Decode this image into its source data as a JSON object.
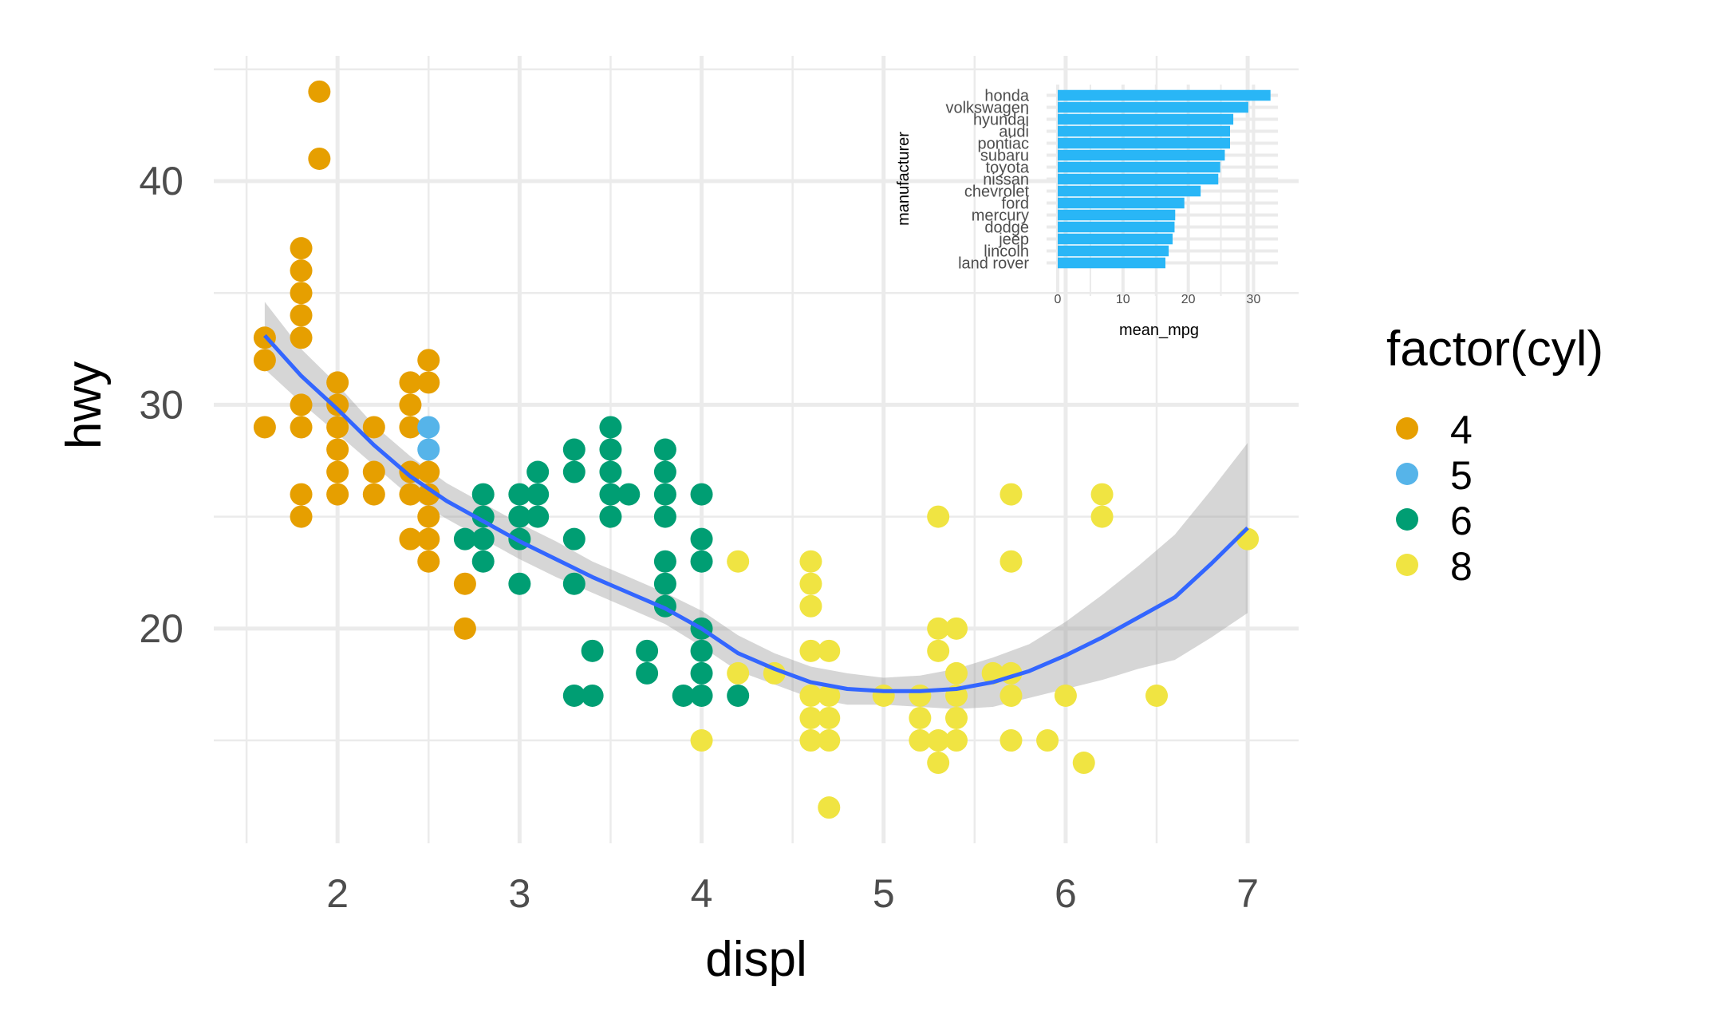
{
  "chart_data": [
    {
      "type": "scatter",
      "xlabel": "displ",
      "ylabel": "hwy",
      "xlim": [
        1.32,
        7.28
      ],
      "ylim": [
        10.4,
        45.6
      ],
      "xticks": [
        2,
        3,
        4,
        5,
        6,
        7
      ],
      "yticks": [
        20,
        30,
        40
      ],
      "grid": true,
      "legend": {
        "title": "factor(cyl)",
        "placement": "right",
        "entries": [
          {
            "label": "4",
            "color": "#E69F00"
          },
          {
            "label": "5",
            "color": "#56B4E9"
          },
          {
            "label": "6",
            "color": "#009E73"
          },
          {
            "label": "8",
            "color": "#F0E442"
          }
        ]
      },
      "series": [
        {
          "name": "4",
          "color": "#E69F00",
          "points": [
            [
              1.6,
              33
            ],
            [
              1.6,
              32
            ],
            [
              1.6,
              29
            ],
            [
              1.8,
              37
            ],
            [
              1.8,
              36
            ],
            [
              1.8,
              35
            ],
            [
              1.8,
              34
            ],
            [
              1.8,
              33
            ],
            [
              1.8,
              30
            ],
            [
              1.8,
              29
            ],
            [
              1.8,
              26
            ],
            [
              1.8,
              25
            ],
            [
              1.9,
              44
            ],
            [
              1.9,
              41
            ],
            [
              2.0,
              31
            ],
            [
              2.0,
              30
            ],
            [
              2.0,
              29
            ],
            [
              2.0,
              28
            ],
            [
              2.0,
              27
            ],
            [
              2.0,
              26
            ],
            [
              2.2,
              29
            ],
            [
              2.2,
              27
            ],
            [
              2.2,
              26
            ],
            [
              2.4,
              31
            ],
            [
              2.4,
              30
            ],
            [
              2.4,
              29
            ],
            [
              2.4,
              27
            ],
            [
              2.4,
              26
            ],
            [
              2.4,
              24
            ],
            [
              2.5,
              32
            ],
            [
              2.5,
              31
            ],
            [
              2.5,
              27
            ],
            [
              2.5,
              26
            ],
            [
              2.5,
              25
            ],
            [
              2.5,
              24
            ],
            [
              2.5,
              23
            ],
            [
              2.7,
              22
            ],
            [
              2.7,
              20
            ]
          ]
        },
        {
          "name": "5",
          "color": "#56B4E9",
          "points": [
            [
              2.5,
              29
            ],
            [
              2.5,
              28
            ]
          ]
        },
        {
          "name": "6",
          "color": "#009E73",
          "points": [
            [
              2.7,
              24
            ],
            [
              2.8,
              26
            ],
            [
              2.8,
              25
            ],
            [
              2.8,
              24
            ],
            [
              2.8,
              23
            ],
            [
              3.0,
              26
            ],
            [
              3.0,
              25
            ],
            [
              3.0,
              24
            ],
            [
              3.0,
              22
            ],
            [
              3.1,
              27
            ],
            [
              3.1,
              26
            ],
            [
              3.1,
              25
            ],
            [
              3.3,
              28
            ],
            [
              3.3,
              27
            ],
            [
              3.3,
              24
            ],
            [
              3.3,
              22
            ],
            [
              3.3,
              17
            ],
            [
              3.4,
              19
            ],
            [
              3.4,
              17
            ],
            [
              3.5,
              29
            ],
            [
              3.5,
              28
            ],
            [
              3.5,
              27
            ],
            [
              3.5,
              26
            ],
            [
              3.5,
              25
            ],
            [
              3.6,
              26
            ],
            [
              3.7,
              19
            ],
            [
              3.7,
              18
            ],
            [
              3.8,
              28
            ],
            [
              3.8,
              27
            ],
            [
              3.8,
              26
            ],
            [
              3.8,
              25
            ],
            [
              3.8,
              23
            ],
            [
              3.8,
              22
            ],
            [
              3.8,
              21
            ],
            [
              3.9,
              17
            ],
            [
              4.0,
              26
            ],
            [
              4.0,
              24
            ],
            [
              4.0,
              23
            ],
            [
              4.0,
              20
            ],
            [
              4.0,
              19
            ],
            [
              4.0,
              18
            ],
            [
              4.0,
              17
            ],
            [
              4.2,
              17
            ]
          ]
        },
        {
          "name": "8",
          "color": "#F0E442",
          "points": [
            [
              4.0,
              15
            ],
            [
              4.2,
              23
            ],
            [
              4.2,
              18
            ],
            [
              4.4,
              18
            ],
            [
              4.6,
              23
            ],
            [
              4.6,
              22
            ],
            [
              4.6,
              21
            ],
            [
              4.6,
              19
            ],
            [
              4.6,
              17
            ],
            [
              4.6,
              16
            ],
            [
              4.6,
              15
            ],
            [
              4.7,
              19
            ],
            [
              4.7,
              17
            ],
            [
              4.7,
              16
            ],
            [
              4.7,
              15
            ],
            [
              4.7,
              12
            ],
            [
              5.0,
              17
            ],
            [
              5.2,
              17
            ],
            [
              5.2,
              16
            ],
            [
              5.2,
              15
            ],
            [
              5.3,
              25
            ],
            [
              5.3,
              20
            ],
            [
              5.3,
              19
            ],
            [
              5.3,
              15
            ],
            [
              5.3,
              14
            ],
            [
              5.4,
              20
            ],
            [
              5.4,
              18
            ],
            [
              5.4,
              17
            ],
            [
              5.4,
              16
            ],
            [
              5.4,
              15
            ],
            [
              5.6,
              18
            ],
            [
              5.7,
              26
            ],
            [
              5.7,
              23
            ],
            [
              5.7,
              18
            ],
            [
              5.7,
              17
            ],
            [
              5.7,
              15
            ],
            [
              5.9,
              15
            ],
            [
              6.0,
              17
            ],
            [
              6.1,
              14
            ],
            [
              6.2,
              26
            ],
            [
              6.2,
              25
            ],
            [
              6.5,
              17
            ],
            [
              7.0,
              24
            ]
          ]
        }
      ],
      "smooth": {
        "method": "loess",
        "color": "#3366FF",
        "points": [
          [
            1.6,
            33.1
          ],
          [
            1.8,
            31.3
          ],
          [
            2.0,
            29.8
          ],
          [
            2.2,
            28.2
          ],
          [
            2.4,
            26.8
          ],
          [
            2.6,
            25.7
          ],
          [
            2.8,
            24.8
          ],
          [
            3.0,
            23.9
          ],
          [
            3.2,
            23.1
          ],
          [
            3.4,
            22.3
          ],
          [
            3.6,
            21.6
          ],
          [
            3.8,
            20.9
          ],
          [
            4.0,
            20.0
          ],
          [
            4.2,
            18.9
          ],
          [
            4.4,
            18.2
          ],
          [
            4.6,
            17.6
          ],
          [
            4.8,
            17.3
          ],
          [
            5.0,
            17.2
          ],
          [
            5.2,
            17.2
          ],
          [
            5.4,
            17.3
          ],
          [
            5.6,
            17.6
          ],
          [
            5.8,
            18.1
          ],
          [
            6.0,
            18.8
          ],
          [
            6.2,
            19.6
          ],
          [
            6.4,
            20.5
          ],
          [
            6.6,
            21.4
          ],
          [
            6.8,
            22.9
          ],
          [
            7.0,
            24.5
          ]
        ],
        "band": [
          [
            1.6,
            34.6,
            31.6
          ],
          [
            1.8,
            32.5,
            30.1
          ],
          [
            2.0,
            30.9,
            28.7
          ],
          [
            2.2,
            29.1,
            27.3
          ],
          [
            2.4,
            27.7,
            25.9
          ],
          [
            2.6,
            26.5,
            24.9
          ],
          [
            2.8,
            25.6,
            24.0
          ],
          [
            3.0,
            24.7,
            23.1
          ],
          [
            3.2,
            23.9,
            22.3
          ],
          [
            3.4,
            23.0,
            21.6
          ],
          [
            3.6,
            22.3,
            20.9
          ],
          [
            3.8,
            21.6,
            20.2
          ],
          [
            4.0,
            20.8,
            19.2
          ],
          [
            4.2,
            19.7,
            18.1
          ],
          [
            4.4,
            18.9,
            17.5
          ],
          [
            4.6,
            18.3,
            16.9
          ],
          [
            4.8,
            18.0,
            16.6
          ],
          [
            5.0,
            17.8,
            16.6
          ],
          [
            5.2,
            17.9,
            16.5
          ],
          [
            5.4,
            18.2,
            16.4
          ],
          [
            5.6,
            18.7,
            16.5
          ],
          [
            5.8,
            19.3,
            16.9
          ],
          [
            6.0,
            20.3,
            17.3
          ],
          [
            6.2,
            21.5,
            17.7
          ],
          [
            6.4,
            22.8,
            18.2
          ],
          [
            6.6,
            24.2,
            18.6
          ],
          [
            6.8,
            26.2,
            19.6
          ],
          [
            7.0,
            28.3,
            20.7
          ]
        ]
      }
    },
    {
      "type": "bar",
      "orientation": "horizontal",
      "xlabel": "mean_mpg",
      "ylabel": "manufacturer",
      "xlim": [
        0,
        33
      ],
      "xticks": [
        0,
        10,
        20,
        30
      ],
      "categories": [
        "honda",
        "volkswagen",
        "hyundai",
        "audi",
        "pontiac",
        "subaru",
        "toyota",
        "nissan",
        "chevrolet",
        "ford",
        "mercury",
        "dodge",
        "jeep",
        "lincoln",
        "land rover"
      ],
      "values": [
        32.6,
        29.2,
        26.9,
        26.4,
        26.4,
        25.6,
        24.9,
        24.6,
        21.9,
        19.4,
        18.0,
        17.9,
        17.6,
        17.0,
        16.5
      ],
      "color": "#29B6F6"
    }
  ]
}
